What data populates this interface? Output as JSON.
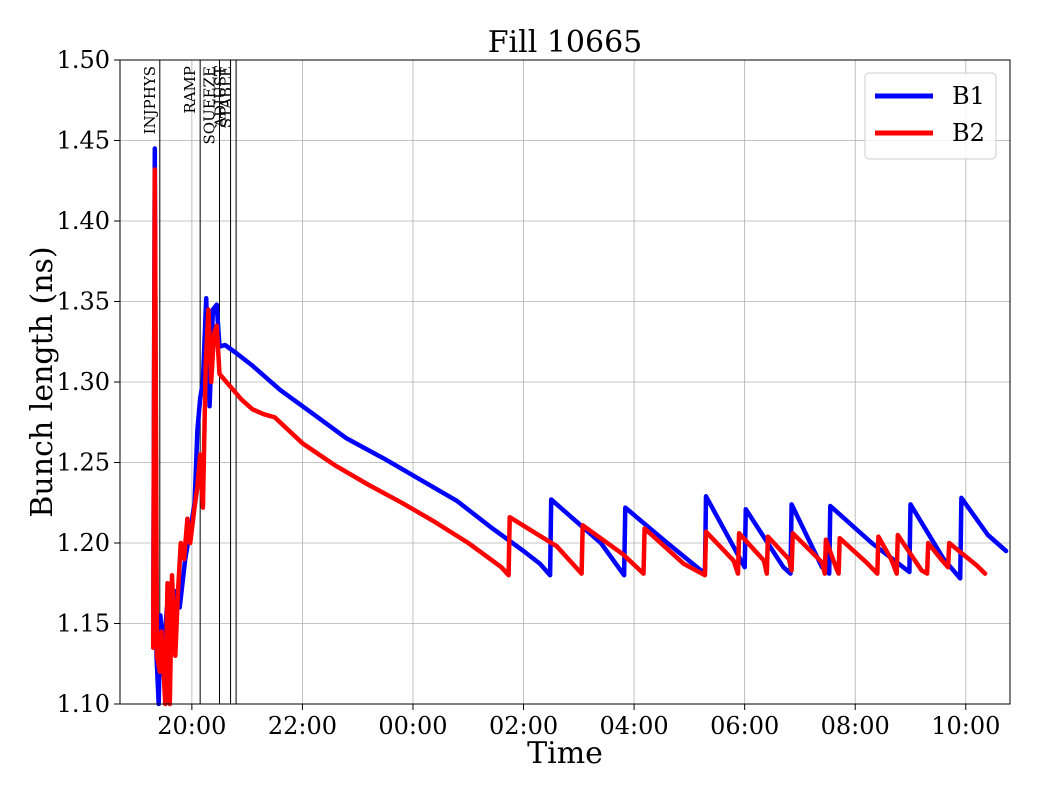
{
  "chart_data": {
    "type": "line",
    "title": "Fill 10665",
    "xlabel": "Time",
    "ylabel": "Bunch length (ns)",
    "ylim": [
      1.1,
      1.5
    ],
    "xlim_hours": [
      18.7,
      34.8
    ],
    "grid": true,
    "legend_position": "top-right",
    "yticks": [
      {
        "v": 1.1,
        "label": "1.10"
      },
      {
        "v": 1.15,
        "label": "1.15"
      },
      {
        "v": 1.2,
        "label": "1.20"
      },
      {
        "v": 1.25,
        "label": "1.25"
      },
      {
        "v": 1.3,
        "label": "1.30"
      },
      {
        "v": 1.35,
        "label": "1.35"
      },
      {
        "v": 1.4,
        "label": "1.40"
      },
      {
        "v": 1.45,
        "label": "1.45"
      },
      {
        "v": 1.5,
        "label": "1.50"
      }
    ],
    "xticks": [
      {
        "t": 20,
        "label": "20:00"
      },
      {
        "t": 22,
        "label": "22:00"
      },
      {
        "t": 24,
        "label": "00:00"
      },
      {
        "t": 26,
        "label": "02:00"
      },
      {
        "t": 28,
        "label": "04:00"
      },
      {
        "t": 30,
        "label": "06:00"
      },
      {
        "t": 32,
        "label": "08:00"
      },
      {
        "t": 34,
        "label": "10:00"
      }
    ],
    "phases": [
      {
        "label": "INJPHYS",
        "t": 19.42
      },
      {
        "label": "RAMP",
        "t": 20.15
      },
      {
        "label": "SQUEEZE",
        "t": 20.5
      },
      {
        "label": "ADJUST",
        "t": 20.7
      },
      {
        "label": "STABLE",
        "t": 20.8
      }
    ],
    "series": [
      {
        "name": "B1",
        "color": "#0000ff",
        "points": [
          [
            19.3,
            1.14
          ],
          [
            19.33,
            1.445
          ],
          [
            19.36,
            1.13
          ],
          [
            19.4,
            1.1
          ],
          [
            19.43,
            1.155
          ],
          [
            19.48,
            1.13
          ],
          [
            19.55,
            1.16
          ],
          [
            19.62,
            1.14
          ],
          [
            19.7,
            1.17
          ],
          [
            19.78,
            1.16
          ],
          [
            19.88,
            1.19
          ],
          [
            19.98,
            1.21
          ],
          [
            20.05,
            1.225
          ],
          [
            20.1,
            1.27
          ],
          [
            20.15,
            1.29
          ],
          [
            20.2,
            1.3
          ],
          [
            20.26,
            1.352
          ],
          [
            20.32,
            1.285
          ],
          [
            20.38,
            1.345
          ],
          [
            20.45,
            1.348
          ],
          [
            20.5,
            1.322
          ],
          [
            20.6,
            1.323
          ],
          [
            20.8,
            1.318
          ],
          [
            21.1,
            1.31
          ],
          [
            21.6,
            1.295
          ],
          [
            22.2,
            1.28
          ],
          [
            22.8,
            1.265
          ],
          [
            23.5,
            1.252
          ],
          [
            24.2,
            1.238
          ],
          [
            24.8,
            1.226
          ],
          [
            25.4,
            1.21
          ],
          [
            26.0,
            1.195
          ],
          [
            26.3,
            1.187
          ],
          [
            26.48,
            1.18
          ],
          [
            26.5,
            1.227
          ],
          [
            27.4,
            1.2
          ],
          [
            27.82,
            1.18
          ],
          [
            27.84,
            1.222
          ],
          [
            28.6,
            1.2
          ],
          [
            29.28,
            1.181
          ],
          [
            29.3,
            1.229
          ],
          [
            30.0,
            1.185
          ],
          [
            30.02,
            1.221
          ],
          [
            30.7,
            1.185
          ],
          [
            30.83,
            1.181
          ],
          [
            30.85,
            1.224
          ],
          [
            31.4,
            1.185
          ],
          [
            31.53,
            1.181
          ],
          [
            31.55,
            1.223
          ],
          [
            32.3,
            1.2
          ],
          [
            32.98,
            1.182
          ],
          [
            33.0,
            1.224
          ],
          [
            33.6,
            1.19
          ],
          [
            33.9,
            1.178
          ],
          [
            33.92,
            1.228
          ],
          [
            34.4,
            1.205
          ],
          [
            34.73,
            1.195
          ]
        ]
      },
      {
        "name": "B2",
        "color": "#ff0000",
        "points": [
          [
            19.3,
            1.135
          ],
          [
            19.33,
            1.432
          ],
          [
            19.37,
            1.13
          ],
          [
            19.42,
            1.12
          ],
          [
            19.45,
            1.145
          ],
          [
            19.52,
            1.1
          ],
          [
            19.56,
            1.175
          ],
          [
            19.6,
            1.1
          ],
          [
            19.64,
            1.18
          ],
          [
            19.7,
            1.13
          ],
          [
            19.75,
            1.17
          ],
          [
            19.8,
            1.2
          ],
          [
            19.86,
            1.19
          ],
          [
            19.92,
            1.215
          ],
          [
            19.97,
            1.2
          ],
          [
            20.04,
            1.22
          ],
          [
            20.1,
            1.235
          ],
          [
            20.15,
            1.255
          ],
          [
            20.2,
            1.222
          ],
          [
            20.25,
            1.31
          ],
          [
            20.3,
            1.345
          ],
          [
            20.35,
            1.3
          ],
          [
            20.4,
            1.33
          ],
          [
            20.45,
            1.335
          ],
          [
            20.5,
            1.305
          ],
          [
            20.7,
            1.297
          ],
          [
            20.9,
            1.289
          ],
          [
            21.1,
            1.283
          ],
          [
            21.3,
            1.28
          ],
          [
            21.5,
            1.278
          ],
          [
            22.0,
            1.262
          ],
          [
            22.6,
            1.248
          ],
          [
            23.2,
            1.236
          ],
          [
            23.8,
            1.225
          ],
          [
            24.4,
            1.213
          ],
          [
            25.0,
            1.2
          ],
          [
            25.6,
            1.185
          ],
          [
            25.73,
            1.18
          ],
          [
            25.75,
            1.216
          ],
          [
            26.6,
            1.198
          ],
          [
            27.05,
            1.181
          ],
          [
            27.07,
            1.211
          ],
          [
            27.8,
            1.193
          ],
          [
            28.17,
            1.181
          ],
          [
            28.19,
            1.209
          ],
          [
            28.9,
            1.187
          ],
          [
            29.28,
            1.18
          ],
          [
            29.3,
            1.207
          ],
          [
            29.8,
            1.189
          ],
          [
            29.88,
            1.181
          ],
          [
            29.9,
            1.206
          ],
          [
            30.35,
            1.189
          ],
          [
            30.4,
            1.181
          ],
          [
            30.42,
            1.204
          ],
          [
            30.8,
            1.19
          ],
          [
            30.85,
            1.183
          ],
          [
            30.87,
            1.206
          ],
          [
            31.4,
            1.188
          ],
          [
            31.45,
            1.181
          ],
          [
            31.47,
            1.202
          ],
          [
            31.65,
            1.185
          ],
          [
            31.7,
            1.181
          ],
          [
            31.72,
            1.203
          ],
          [
            32.2,
            1.188
          ],
          [
            32.4,
            1.181
          ],
          [
            32.42,
            1.204
          ],
          [
            32.65,
            1.19
          ],
          [
            32.75,
            1.181
          ],
          [
            32.77,
            1.205
          ],
          [
            33.2,
            1.183
          ],
          [
            33.3,
            1.181
          ],
          [
            33.32,
            1.2
          ],
          [
            33.55,
            1.19
          ],
          [
            33.68,
            1.185
          ],
          [
            33.7,
            1.2
          ],
          [
            34.2,
            1.186
          ],
          [
            34.35,
            1.181
          ]
        ]
      }
    ]
  }
}
